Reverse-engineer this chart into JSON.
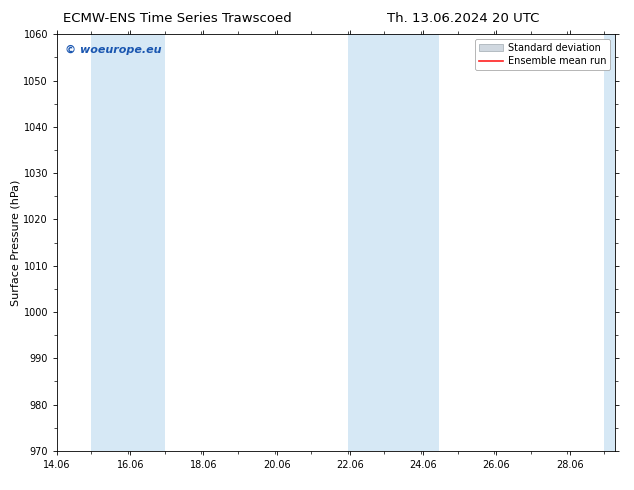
{
  "title_left": "ECMW-ENS Time Series Trawscoed",
  "title_right": "Th. 13.06.2024 20 UTC",
  "ylabel": "Surface Pressure (hPa)",
  "ylim": [
    970,
    1060
  ],
  "yticks": [
    970,
    980,
    990,
    1000,
    1010,
    1020,
    1030,
    1040,
    1050,
    1060
  ],
  "xtick_labels": [
    "14.06",
    "16.06",
    "18.06",
    "20.06",
    "22.06",
    "24.06",
    "26.06",
    "28.06"
  ],
  "xtick_positions": [
    14.06,
    16.06,
    18.06,
    20.06,
    22.06,
    24.06,
    26.06,
    28.06
  ],
  "xlim_start": 14.06,
  "xlim_end": 29.3,
  "shaded_bands": [
    {
      "x_start": 15.0,
      "x_end": 17.0
    },
    {
      "x_start": 22.0,
      "x_end": 24.5
    },
    {
      "x_start": 29.0,
      "x_end": 29.3
    }
  ],
  "shade_color": "#d6e8f5",
  "background_color": "#ffffff",
  "watermark_text": "© woeurope.eu",
  "watermark_color": "#1a56b0",
  "legend_sd_facecolor": "#d0d8e0",
  "legend_sd_edgecolor": "#a0aab0",
  "legend_mean_color": "#ff2020",
  "title_fontsize": 9.5,
  "axis_label_fontsize": 8,
  "tick_fontsize": 7,
  "legend_fontsize": 7,
  "watermark_fontsize": 8
}
